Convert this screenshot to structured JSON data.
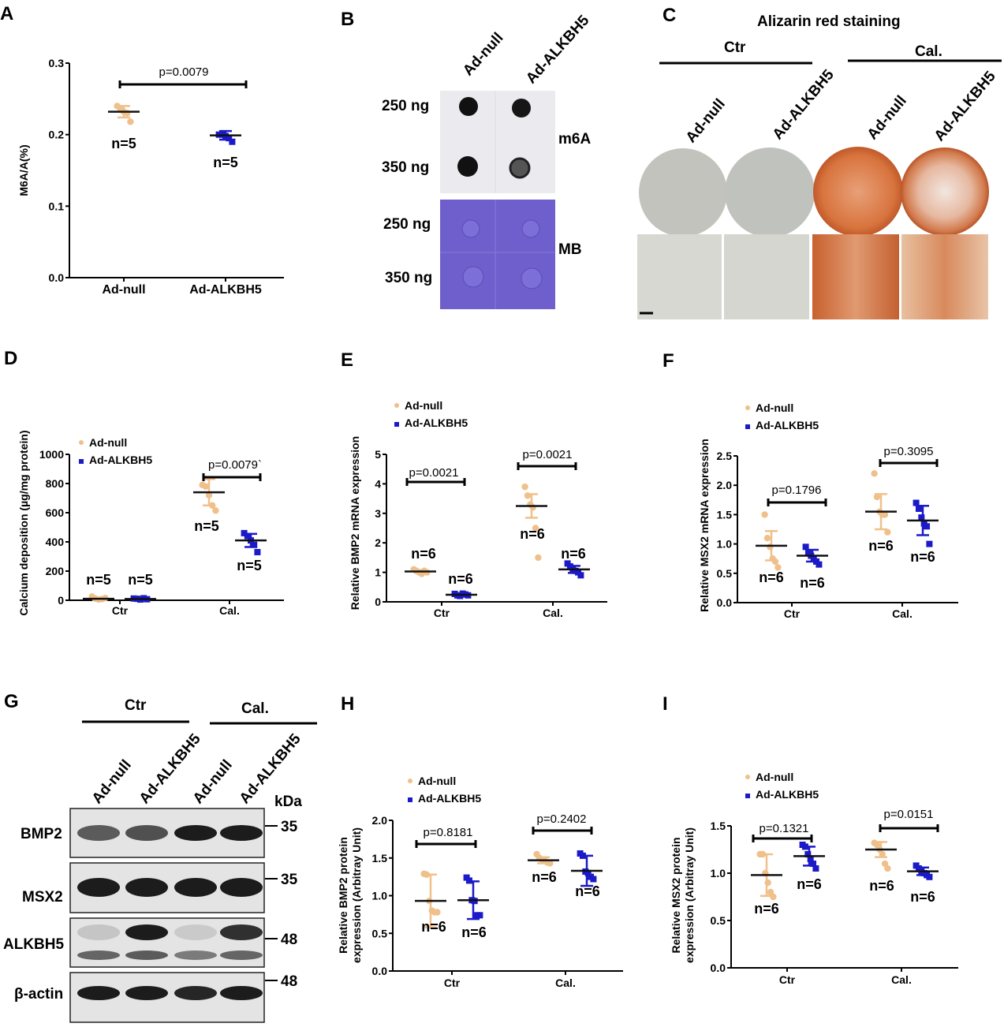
{
  "panels": {
    "A": "A",
    "B": "B",
    "C": "C",
    "D": "D",
    "E": "E",
    "F": "F",
    "G": "G",
    "H": "H",
    "I": "I"
  },
  "legend": [
    "Ad-null",
    "Ad-ALKBH5"
  ],
  "colors": {
    "null": "#f0c08a",
    "alkbh5": "#1a1ac8",
    "mean": "#111111",
    "mb": "#6e5fcc"
  },
  "blot": {
    "cols": [
      "Ad-null",
      "Ad-ALKBH5"
    ],
    "rows": [
      "250 ng",
      "350 ng",
      "250 ng",
      "350 ng"
    ],
    "m6a": "m6A",
    "mb": "MB"
  },
  "staining": {
    "title": "Alizarin red staining",
    "groups": [
      "Ctr",
      "Cal."
    ],
    "cols": [
      "Ad-null",
      "Ad-ALKBH5",
      "Ad-null",
      "Ad-ALKBH5"
    ]
  },
  "western": {
    "groups": [
      "Ctr",
      "Cal."
    ],
    "cols": [
      "Ad-null",
      "Ad-ALKBH5",
      "Ad-null",
      "Ad-ALKBH5"
    ],
    "kda": "kDa",
    "rows": [
      "BMP2",
      "MSX2",
      "ALKBH5",
      "β-actin"
    ],
    "markers": [
      "35",
      "35",
      "48",
      "48"
    ]
  },
  "chart_data": [
    {
      "id": "A",
      "type": "scatter",
      "ylabel": [
        "M6A/A(%)"
      ],
      "ylim": [
        0,
        0.3
      ],
      "yticks": [
        "0.0",
        "0.1",
        "0.2",
        "0.3"
      ],
      "tickvals": [
        0,
        0.1,
        0.2,
        0.3
      ],
      "categories": [
        "Ad-null",
        "Ad-ALKBH5"
      ],
      "legend": false,
      "groups": [
        [
          {
            "mean": 0.232,
            "err": 0.008,
            "pts": [
              0.24,
              0.235,
              0.232,
              0.23,
              0.218
            ],
            "n": "n=5"
          },
          {
            "mean": 0.199,
            "err": 0.006,
            "pts": [
              0.2,
              0.2,
              0.198,
              0.195,
              0.19
            ],
            "n": "n=5"
          }
        ]
      ],
      "p": [
        "p=0.0079"
      ]
    },
    {
      "id": "D",
      "type": "scatter",
      "ylabel": [
        "Calcium deposition (µg/mg protein)"
      ],
      "ylim": [
        0,
        1000
      ],
      "yticks": [
        "0",
        "200",
        "400",
        "600",
        "800",
        "1000"
      ],
      "tickvals": [
        0,
        200,
        400,
        600,
        800,
        1000
      ],
      "categories": [
        "Ctr",
        "Cal."
      ],
      "legend": true,
      "groups": [
        [
          {
            "mean": 10,
            "err": 8,
            "pts": [
              25,
              12,
              5,
              8,
              15
            ],
            "n": "n=5"
          },
          {
            "mean": 9,
            "err": 4,
            "pts": [
              12,
              10,
              5,
              14,
              7
            ],
            "n": "n=5"
          }
        ],
        [
          {
            "mean": 740,
            "err": 90,
            "pts": [
              790,
              780,
              720,
              650,
              615
            ],
            "n": "n=5"
          },
          {
            "mean": 410,
            "err": 45,
            "pts": [
              460,
              440,
              410,
              380,
              330
            ],
            "n": "n=5"
          }
        ]
      ],
      "p": [
        null,
        "p=0.0079`"
      ]
    },
    {
      "id": "E",
      "type": "scatter",
      "ylabel": [
        "Relative BMP2 mRNA expression"
      ],
      "ylim": [
        0,
        5
      ],
      "yticks": [
        "0",
        "1",
        "2",
        "3",
        "4",
        "5"
      ],
      "tickvals": [
        0,
        1,
        2,
        3,
        4,
        5
      ],
      "categories": [
        "Ctr",
        "Cal."
      ],
      "legend": true,
      "groups": [
        [
          {
            "mean": 1.03,
            "err": 0.05,
            "pts": [
              1.1,
              1.05,
              1.0,
              0.95,
              1.05,
              1.0
            ],
            "n": "n=6"
          },
          {
            "mean": 0.24,
            "err": 0.03,
            "pts": [
              0.27,
              0.22,
              0.2,
              0.28,
              0.25,
              0.22
            ],
            "n": "n=6"
          }
        ],
        [
          {
            "mean": 3.25,
            "err": 0.4,
            "pts": [
              3.9,
              3.6,
              3.3,
              3.2,
              2.5,
              1.5
            ],
            "n": "n=6"
          },
          {
            "mean": 1.1,
            "err": 0.12,
            "pts": [
              1.3,
              1.2,
              1.1,
              1.05,
              1.0,
              0.9
            ],
            "n": "n=6"
          }
        ]
      ],
      "p": [
        "p=0.0021",
        "p=0.0021"
      ]
    },
    {
      "id": "F",
      "type": "scatter",
      "ylabel": [
        "Relative MSX2 mRNA expression"
      ],
      "ylim": [
        0,
        2.5
      ],
      "yticks": [
        "0.0",
        "0.5",
        "1.0",
        "1.5",
        "2.0",
        "2.5"
      ],
      "tickvals": [
        0,
        0.5,
        1,
        1.5,
        2,
        2.5
      ],
      "categories": [
        "Ctr",
        "Cal."
      ],
      "legend": true,
      "groups": [
        [
          {
            "mean": 0.97,
            "err": 0.25,
            "pts": [
              1.5,
              1.1,
              0.95,
              0.75,
              0.7,
              0.6
            ],
            "n": "n=6"
          },
          {
            "mean": 0.8,
            "err": 0.1,
            "pts": [
              0.95,
              0.85,
              0.8,
              0.75,
              0.7,
              0.65
            ],
            "n": "n=6"
          }
        ],
        [
          {
            "mean": 1.55,
            "err": 0.3,
            "pts": [
              2.2,
              1.8,
              1.55,
              1.5,
              1.5,
              1.2
            ],
            "n": "n=6"
          },
          {
            "mean": 1.4,
            "err": 0.25,
            "pts": [
              1.7,
              1.6,
              1.45,
              1.35,
              1.3,
              1.0
            ],
            "n": "n=6"
          }
        ]
      ],
      "p": [
        "p=0.1796",
        "p=0.3095"
      ]
    },
    {
      "id": "H",
      "type": "scatter",
      "ylabel": [
        "Relative BMP2 protein",
        "expression (Arbitray Unit)"
      ],
      "ylim": [
        0,
        2
      ],
      "yticks": [
        "0.0",
        "0.5",
        "1.0",
        "1.5",
        "2.0"
      ],
      "tickvals": [
        0,
        0.5,
        1,
        1.5,
        2
      ],
      "categories": [
        "Ctr",
        "Cal."
      ],
      "legend": true,
      "groups": [
        [
          {
            "mean": 0.93,
            "err": 0.35,
            "pts": [
              1.29,
              1.28,
              0.93,
              0.8,
              0.78,
              0.78
            ],
            "n": "n=6"
          },
          {
            "mean": 0.94,
            "err": 0.25,
            "pts": [
              1.24,
              1.2,
              0.94,
              0.93,
              0.74,
              0.74
            ],
            "n": "n=6"
          }
        ],
        [
          {
            "mean": 1.47,
            "err": 0.04,
            "pts": [
              1.55,
              1.5,
              1.48,
              1.46,
              1.44,
              1.43
            ],
            "n": "n=6"
          },
          {
            "mean": 1.33,
            "err": 0.2,
            "pts": [
              1.56,
              1.53,
              1.32,
              1.3,
              1.25,
              1.22
            ],
            "n": "n=6"
          }
        ]
      ],
      "p": [
        "p=0.8181",
        "p=0.2402"
      ]
    },
    {
      "id": "I",
      "type": "scatter",
      "ylabel": [
        "Relative MSX2 protein",
        "expression (Arbitray Unit)"
      ],
      "ylim": [
        0,
        1.5
      ],
      "yticks": [
        "0.0",
        "0.5",
        "1.0",
        "1.5"
      ],
      "tickvals": [
        0,
        0.5,
        1,
        1.5
      ],
      "categories": [
        "Ctr",
        "Cal."
      ],
      "legend": true,
      "groups": [
        [
          {
            "mean": 0.98,
            "err": 0.22,
            "pts": [
              1.2,
              1.2,
              1.0,
              0.9,
              0.8,
              0.75
            ],
            "n": "n=6"
          },
          {
            "mean": 1.18,
            "err": 0.1,
            "pts": [
              1.3,
              1.28,
              1.2,
              1.15,
              1.1,
              1.05
            ],
            "n": "n=6"
          }
        ],
        [
          {
            "mean": 1.25,
            "err": 0.08,
            "pts": [
              1.32,
              1.3,
              1.25,
              1.2,
              1.1,
              1.05
            ],
            "n": "n=6"
          },
          {
            "mean": 1.02,
            "err": 0.04,
            "pts": [
              1.08,
              1.05,
              1.02,
              1.0,
              0.98,
              0.96
            ],
            "n": "n=6"
          }
        ]
      ],
      "p": [
        "p=0.1321",
        "p=0.0151"
      ]
    }
  ]
}
